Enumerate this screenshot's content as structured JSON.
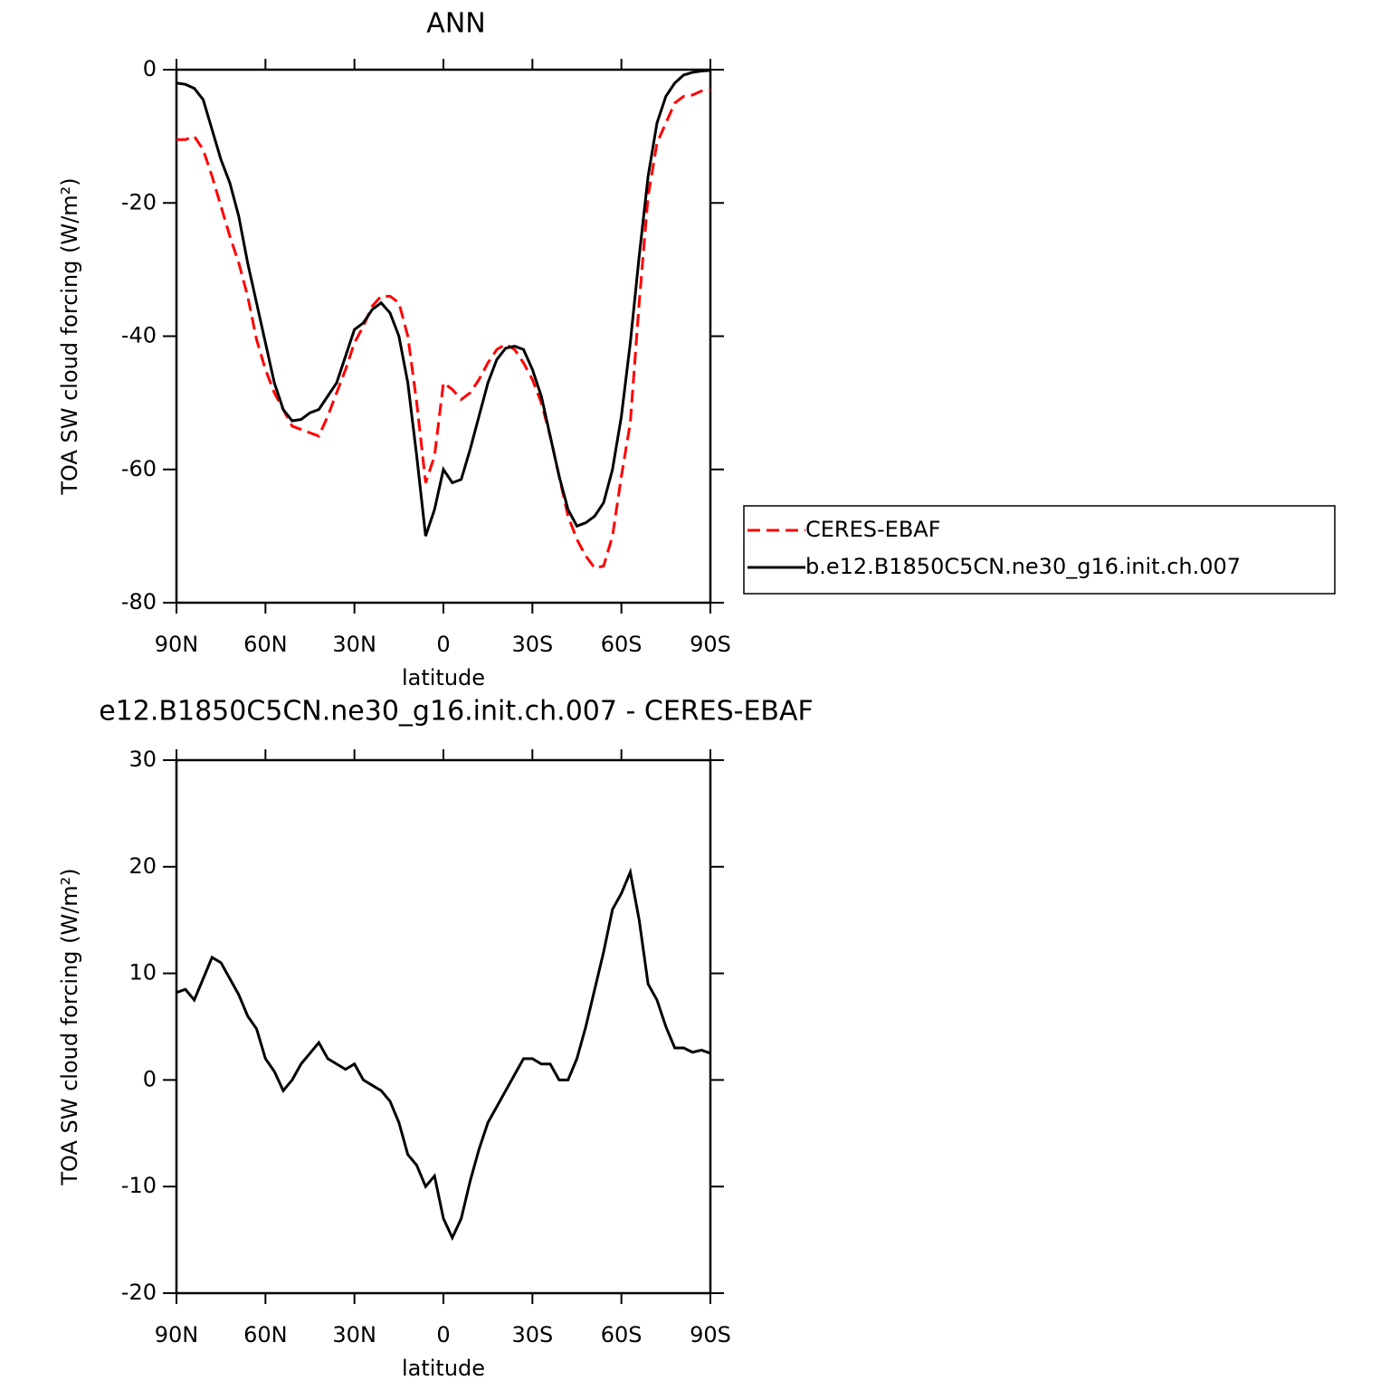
{
  "chart_data": [
    {
      "type": "line",
      "title": "ANN",
      "x_label": "latitude",
      "y_label": "TOA SW cloud forcing (W/m²)",
      "x": [
        90,
        87,
        84,
        81,
        78,
        75,
        72,
        69,
        66,
        63,
        60,
        57,
        54,
        51,
        48,
        45,
        42,
        39,
        36,
        33,
        30,
        27,
        24,
        21,
        18,
        15,
        12,
        9,
        6,
        3,
        0,
        -3,
        -6,
        -9,
        -12,
        -15,
        -18,
        -21,
        -24,
        -27,
        -30,
        -33,
        -36,
        -39,
        -42,
        -45,
        -48,
        -51,
        -54,
        -57,
        -60,
        -63,
        -66,
        -69,
        -72,
        -75,
        -78,
        -81,
        -84,
        -87,
        -90
      ],
      "series": [
        {
          "name": "CERES-EBAF",
          "color": "#ff0000",
          "dash": "dashed",
          "values": [
            -10.5,
            -10.5,
            -10,
            -12,
            -16,
            -20.5,
            -25,
            -29,
            -34,
            -40.5,
            -45,
            -48.5,
            -51,
            -53.5,
            -54,
            -54.5,
            -55,
            -52,
            -48.5,
            -45,
            -41,
            -38.5,
            -35.5,
            -34,
            -34,
            -35,
            -40,
            -50,
            -62,
            -58,
            -47,
            -48,
            -49.5,
            -48.5,
            -46.5,
            -44,
            -42,
            -41.2,
            -42,
            -44,
            -46.5,
            -50,
            -55,
            -61,
            -67,
            -70.5,
            -73,
            -74.8,
            -74.5,
            -70,
            -61,
            -53,
            -35,
            -19,
            -11,
            -8,
            -5,
            -4,
            -3.8,
            -3.2,
            -3
          ]
        },
        {
          "name": "b.e12.B1850C5CN.ne30_g16.init.ch.007",
          "color": "#000000",
          "dash": "solid",
          "values": [
            -2,
            -2.2,
            -2.8,
            -4.5,
            -9,
            -13.5,
            -17,
            -22,
            -29,
            -35,
            -41,
            -47,
            -51,
            -52.7,
            -52.5,
            -51.5,
            -51,
            -49,
            -47,
            -43,
            -39,
            -38,
            -36,
            -35,
            -36.5,
            -40,
            -47,
            -58,
            -70,
            -66,
            -60,
            -62,
            -61.5,
            -57,
            -52,
            -47,
            -43.5,
            -41.8,
            -41.5,
            -42,
            -45,
            -49,
            -55,
            -61,
            -66,
            -68.5,
            -68,
            -67,
            -65,
            -60,
            -52,
            -41,
            -28,
            -16,
            -8,
            -4,
            -2,
            -0.8,
            -0.4,
            -0.2,
            -0.1
          ]
        }
      ],
      "xlim": [
        90,
        -90
      ],
      "ylim": [
        -80,
        0
      ],
      "xticks": [
        {
          "value": 90,
          "label": "90N"
        },
        {
          "value": 60,
          "label": "60N"
        },
        {
          "value": 30,
          "label": "30N"
        },
        0,
        {
          "value": -30,
          "label": "30S"
        },
        {
          "value": -60,
          "label": "60S"
        },
        {
          "value": -90,
          "label": "90S"
        }
      ],
      "yticks": [
        -80,
        -60,
        -40,
        -20,
        0
      ],
      "legend": "right"
    },
    {
      "type": "line",
      "title": "e12.B1850C5CN.ne30_g16.init.ch.007 - CERES-EBAF",
      "x_label": "latitude",
      "y_label": "TOA SW cloud forcing (W/m²)",
      "x": [
        90,
        87,
        84,
        81,
        78,
        75,
        72,
        69,
        66,
        63,
        60,
        57,
        54,
        51,
        48,
        45,
        42,
        39,
        36,
        33,
        30,
        27,
        24,
        21,
        18,
        15,
        12,
        9,
        6,
        3,
        0,
        -3,
        -6,
        -9,
        -12,
        -15,
        -18,
        -21,
        -24,
        -27,
        -30,
        -33,
        -36,
        -39,
        -42,
        -45,
        -48,
        -51,
        -54,
        -57,
        -60,
        -63,
        -66,
        -69,
        -72,
        -75,
        -78,
        -81,
        -84,
        -87,
        -90
      ],
      "series": [
        {
          "color": "#000000",
          "dash": "solid",
          "values": [
            8.2,
            8.5,
            7.5,
            9.5,
            11.5,
            11,
            9.5,
            8,
            6,
            4.8,
            2,
            0.8,
            -1,
            0,
            1.5,
            2.5,
            3.5,
            2,
            1.5,
            1,
            1.5,
            0,
            -0.5,
            -1,
            -2,
            -4,
            -7,
            -8,
            -10,
            -9,
            -13,
            -14.8,
            -13,
            -9.5,
            -6.5,
            -4,
            -2.5,
            -1,
            0.5,
            2,
            2,
            1.5,
            1.5,
            0,
            0,
            2,
            5,
            8.5,
            12,
            16,
            17.5,
            19.5,
            15,
            9,
            7.5,
            5,
            3,
            3,
            2.6,
            2.8,
            2.5
          ]
        }
      ],
      "xlim": [
        90,
        -90
      ],
      "ylim": [
        -20,
        30
      ],
      "xticks": [
        {
          "value": 90,
          "label": "90N"
        },
        {
          "value": 60,
          "label": "60N"
        },
        {
          "value": 30,
          "label": "30N"
        },
        0,
        {
          "value": -30,
          "label": "30S"
        },
        {
          "value": -60,
          "label": "60S"
        },
        {
          "value": -90,
          "label": "90S"
        }
      ],
      "yticks": [
        -20,
        -10,
        0,
        10,
        20,
        30
      ]
    }
  ]
}
